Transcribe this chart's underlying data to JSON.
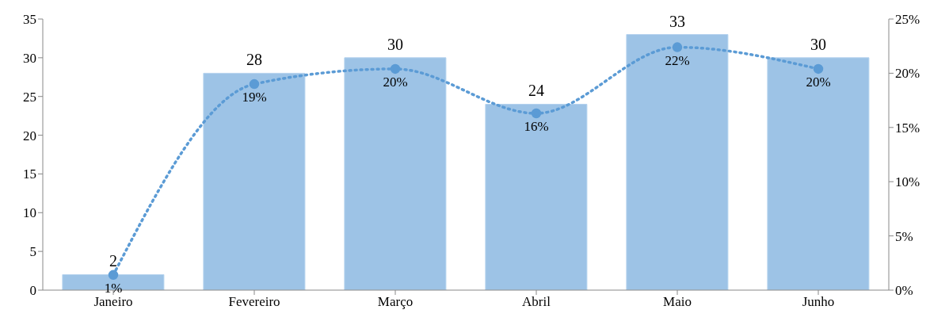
{
  "chart_data": {
    "type": "bar",
    "categories": [
      "Janeiro",
      "Fevereiro",
      "Março",
      "Abril",
      "Maio",
      "Junho"
    ],
    "series": [
      {
        "color": "#9dc3e6",
        "values": [
          2,
          28,
          30,
          24,
          33,
          30
        ],
        "value_labels": [
          "2",
          "28",
          "30",
          "24",
          "33",
          "30"
        ]
      },
      {
        "type": "line",
        "axis": "y2",
        "color": "#5b9bd5",
        "values": [
          1.4,
          19.0,
          20.4,
          16.3,
          22.4,
          20.4
        ],
        "value_labels": [
          "1%",
          "19%",
          "20%",
          "16%",
          "22%",
          "20%"
        ]
      }
    ],
    "ylim": [
      0,
      35
    ],
    "yticks": [
      0,
      5,
      10,
      15,
      20,
      25,
      30,
      35
    ],
    "y2lim": [
      0,
      25
    ],
    "y2ticks": [
      {
        "value": 0,
        "label": "0%"
      },
      {
        "value": 5,
        "label": "5%"
      },
      {
        "value": 10,
        "label": "10%"
      },
      {
        "value": 15,
        "label": "15%"
      },
      {
        "value": 20,
        "label": "20%"
      },
      {
        "value": 25,
        "label": "25%"
      }
    ],
    "marker": "circle",
    "line_style": "dotted"
  }
}
